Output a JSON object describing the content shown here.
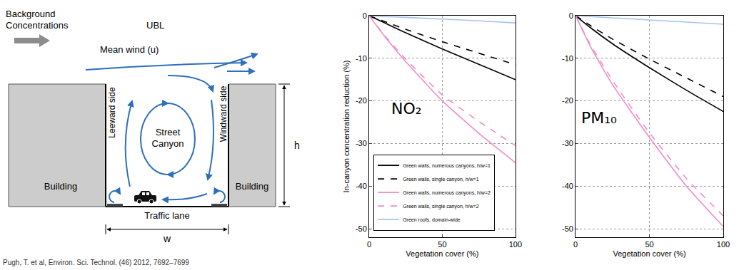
{
  "diagram": {
    "background": "Background Concentrations",
    "ubl": "UBL",
    "wind": "Mean wind (u)",
    "leeward": "Leeward side",
    "windward": "Windward side",
    "canyon": "Street Canyon",
    "building_left": "Building",
    "building_right": "Building",
    "lane": "Traffic lane",
    "height": "h",
    "width": "w"
  },
  "source": "Pugh, T. et al, Environ. Sci. Technol. (46) 2012, 7692–7699",
  "chart_data": [
    {
      "type": "line",
      "title": "NO₂",
      "x_label": "Vegetation cover (%)",
      "y_label": "In-canyon concentration reduction (%)",
      "xlim": [
        0,
        100
      ],
      "xticks": [
        0,
        50,
        100
      ],
      "ylim": [
        -52,
        0
      ],
      "yticks": [
        -50,
        -40,
        -30,
        -20,
        -10,
        0
      ],
      "grid": true,
      "legend": "lower left",
      "x": [
        0,
        10,
        25,
        50,
        75,
        100
      ],
      "series": [
        {
          "name": "Green walls, numerous canyons, h/w=1",
          "color": "#000000",
          "line_style": "solid",
          "values": [
            0,
            -1.6,
            -4,
            -7.8,
            -11.4,
            -15
          ]
        },
        {
          "name": "Green walls, single canyon, h/w=1",
          "color": "#000000",
          "line_style": "dashed",
          "values": [
            0,
            -1.3,
            -3.2,
            -6.1,
            -8.8,
            -11.5
          ]
        },
        {
          "name": "Green walls, numerous canyons, h/w=2",
          "color": "#f08ccb",
          "line_style": "solid",
          "values": [
            0,
            -4.6,
            -10.8,
            -20,
            -27.6,
            -34.5
          ]
        },
        {
          "name": "Green walls, single canyon, h/w=2",
          "color": "#f08ccb",
          "line_style": "dashed",
          "values": [
            0,
            -4.4,
            -10.2,
            -18.6,
            -24.8,
            -30.5
          ]
        },
        {
          "name": "Green roofs, domain-wide",
          "color": "#a7c3ec",
          "line_style": "solid",
          "values": [
            0,
            -0.2,
            -0.4,
            -0.8,
            -1.2,
            -1.7
          ]
        }
      ]
    },
    {
      "type": "line",
      "title": "PM₁₀",
      "x_label": "Vegetation cover (%)",
      "xlim": [
        0,
        100
      ],
      "xticks": [
        0,
        50,
        100
      ],
      "ylim": [
        -52,
        0
      ],
      "yticks": [
        -50,
        -40,
        -30,
        -20,
        -10,
        0
      ],
      "grid": true,
      "x": [
        0,
        10,
        25,
        50,
        75,
        100
      ],
      "series": [
        {
          "name": "Green walls, numerous canyons, h/w=1",
          "color": "#000000",
          "line_style": "solid",
          "values": [
            0,
            -2.8,
            -6.6,
            -12.2,
            -17.5,
            -22.5
          ]
        },
        {
          "name": "Green walls, single canyon, h/w=1",
          "color": "#000000",
          "line_style": "dashed",
          "values": [
            0,
            -2.3,
            -5.5,
            -10.2,
            -14.6,
            -19
          ]
        },
        {
          "name": "Green walls, numerous canyons, h/w=2",
          "color": "#f08ccb",
          "line_style": "solid",
          "values": [
            0,
            -7.2,
            -16.2,
            -28.6,
            -40,
            -49.5
          ]
        },
        {
          "name": "Green walls, single canyon, h/w=2",
          "color": "#f08ccb",
          "line_style": "dashed",
          "values": [
            0,
            -6.8,
            -15.2,
            -27.5,
            -38.2,
            -47
          ]
        },
        {
          "name": "Green roofs, domain-wide",
          "color": "#a7c3ec",
          "line_style": "solid",
          "values": [
            0,
            -0.2,
            -0.5,
            -1,
            -1.5,
            -2
          ]
        }
      ]
    }
  ]
}
